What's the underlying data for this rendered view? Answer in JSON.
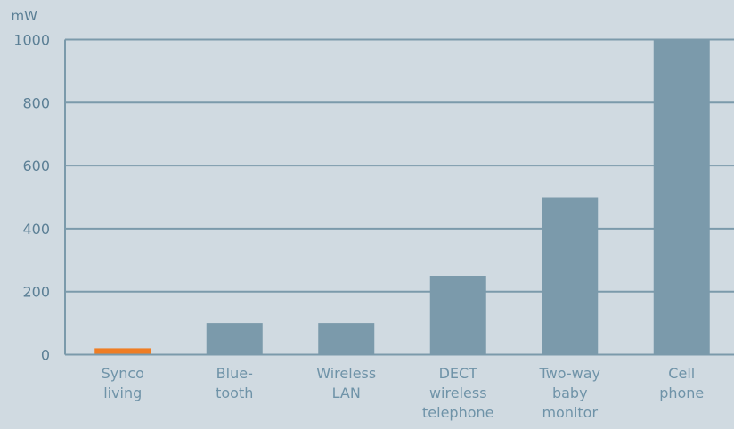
{
  "chart_data": {
    "type": "bar",
    "ylabel": "mW",
    "ylim": [
      0,
      1000
    ],
    "yticks": [
      "0",
      "200",
      "400",
      "600",
      "800",
      "1000"
    ],
    "grid": true,
    "categories": [
      [
        "Synco",
        "living"
      ],
      [
        "Blue-",
        "tooth"
      ],
      [
        "Wireless",
        "LAN"
      ],
      [
        "DECT",
        "wireless",
        "telephone"
      ],
      [
        "Two-way",
        "baby",
        "monitor"
      ],
      [
        "Cell",
        "phone"
      ]
    ],
    "values": [
      20,
      100,
      100,
      250,
      500,
      1000
    ],
    "colors": [
      "#ef7d24",
      "#7b9aab",
      "#7b9aab",
      "#7b9aab",
      "#7b9aab",
      "#7b9aab"
    ],
    "grid_color": "#7b9aab",
    "text_color": "#5b7f95",
    "category_text_color": "#6f93a8"
  }
}
